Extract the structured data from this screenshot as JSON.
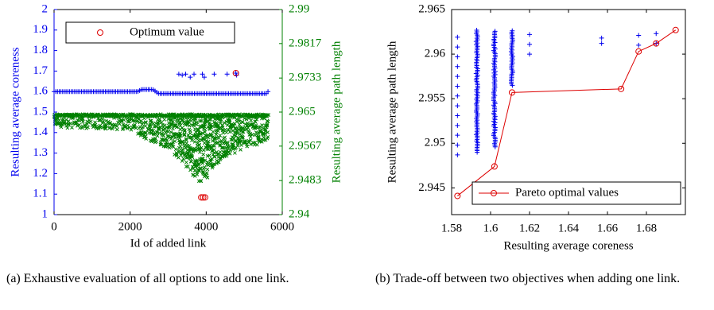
{
  "captions": {
    "a": "(a) Exhaustive evaluation of all options to add one link.",
    "b": "(b) Trade-off between two objectives when adding one link."
  },
  "colors": {
    "blue": "#0000ee",
    "green": "#008000",
    "red": "#dd0000",
    "axis": "#000000"
  },
  "chart_data": [
    {
      "type": "scatter",
      "panel": "a",
      "xlabel": "Id of added link",
      "ylabel_left": "Resulting average coreness",
      "ylabel_right": "Resulting average path length",
      "xlim": [
        0,
        6000
      ],
      "ylim_left": [
        1,
        2
      ],
      "ylim_right": [
        2.94,
        2.99
      ],
      "x_ticks": [
        0,
        2000,
        4000,
        6000
      ],
      "y_ticks_left": [
        1,
        1.1,
        1.2,
        1.3,
        1.4,
        1.5,
        1.6,
        1.7,
        1.8,
        1.9,
        2
      ],
      "y_ticks_right": [
        "2.94",
        "2.9483",
        "2.9567",
        "2.965",
        "2.9733",
        "2.9817",
        "2.99"
      ],
      "legend": {
        "position": "top",
        "entries": [
          "Optimum value"
        ]
      },
      "series": [
        {
          "name": "",
          "axis": "left",
          "marker": "+",
          "color": "blue",
          "description_points": [
            [
              0,
              1.6
            ],
            [
              2200,
              1.6
            ],
            [
              2300,
              1.61
            ],
            [
              2600,
              1.61
            ],
            [
              2750,
              1.59
            ],
            [
              5600,
              1.59
            ],
            [
              5650,
              1.61
            ]
          ],
          "outliers": [
            [
              3280,
              1.685
            ],
            [
              3370,
              1.68
            ],
            [
              3460,
              1.685
            ],
            [
              3580,
              1.67
            ],
            [
              3680,
              1.685
            ],
            [
              3900,
              1.685
            ],
            [
              3950,
              1.67
            ],
            [
              4210,
              1.685
            ],
            [
              4550,
              1.685
            ],
            [
              4780,
              1.69
            ],
            [
              4800,
              1.68
            ]
          ]
        },
        {
          "name": "",
          "axis": "right",
          "marker": "x",
          "color": "green",
          "band_top": 2.9645,
          "band_bottom_points": [
            [
              0,
              2.9612
            ],
            [
              1000,
              2.961
            ],
            [
              2000,
              2.9605
            ],
            [
              2500,
              2.958
            ],
            [
              3000,
              2.956
            ],
            [
              3400,
              2.952
            ],
            [
              3700,
              2.949
            ],
            [
              3900,
              2.947
            ],
            [
              4100,
              2.951
            ],
            [
              4500,
              2.954
            ],
            [
              5000,
              2.956
            ],
            [
              5600,
              2.958
            ]
          ]
        },
        {
          "name": "Optimum value",
          "axis": "mixed",
          "marker": "o",
          "color": "red",
          "points_left": [
            [
              4780,
              1.69
            ]
          ],
          "points_right": [
            [
              3870,
              2.9442
            ],
            [
              3920,
              2.9442
            ],
            [
              3970,
              2.9442
            ]
          ]
        }
      ]
    },
    {
      "type": "scatter",
      "panel": "b",
      "xlabel": "Resulting average coreness",
      "ylabel": "Resulting average path length",
      "xlim": [
        1.58,
        1.7
      ],
      "ylim": [
        2.942,
        2.965
      ],
      "x_ticks": [
        "1.58",
        "1.6",
        "1.62",
        "1.64",
        "1.66",
        "1.68"
      ],
      "y_ticks": [
        "2.945",
        "2.95",
        "2.955",
        "2.96",
        "2.965"
      ],
      "legend": {
        "position": "bottom-right",
        "entries": [
          "Pareto optimal values"
        ]
      },
      "columns": [
        {
          "x": 1.583,
          "low": 2.9487,
          "high": 2.9625,
          "dense": false
        },
        {
          "x": 1.593,
          "low": 2.949,
          "high": 2.9627,
          "dense": true
        },
        {
          "x": 1.602,
          "low": 2.9496,
          "high": 2.9627,
          "dense": true
        },
        {
          "x": 1.611,
          "low": 2.9565,
          "high": 2.9627,
          "dense": true
        },
        {
          "x": 1.62,
          "low": 2.96,
          "high": 2.9625,
          "dense": false
        },
        {
          "x": 1.657,
          "low": 2.9612,
          "high": 2.9618,
          "dense": false
        },
        {
          "x": 1.676,
          "low": 2.961,
          "high": 2.9627,
          "dense": false
        },
        {
          "x": 1.685,
          "low": 2.9612,
          "high": 2.9627,
          "dense": false
        }
      ],
      "series": [
        {
          "name": "Pareto optimal values",
          "color": "red",
          "marker": "o-",
          "x": [
            1.583,
            1.602,
            1.611,
            1.667,
            1.676,
            1.685,
            1.695
          ],
          "y": [
            2.9441,
            2.9474,
            2.9557,
            2.9561,
            2.9603,
            2.9612,
            2.9627
          ]
        }
      ]
    }
  ]
}
